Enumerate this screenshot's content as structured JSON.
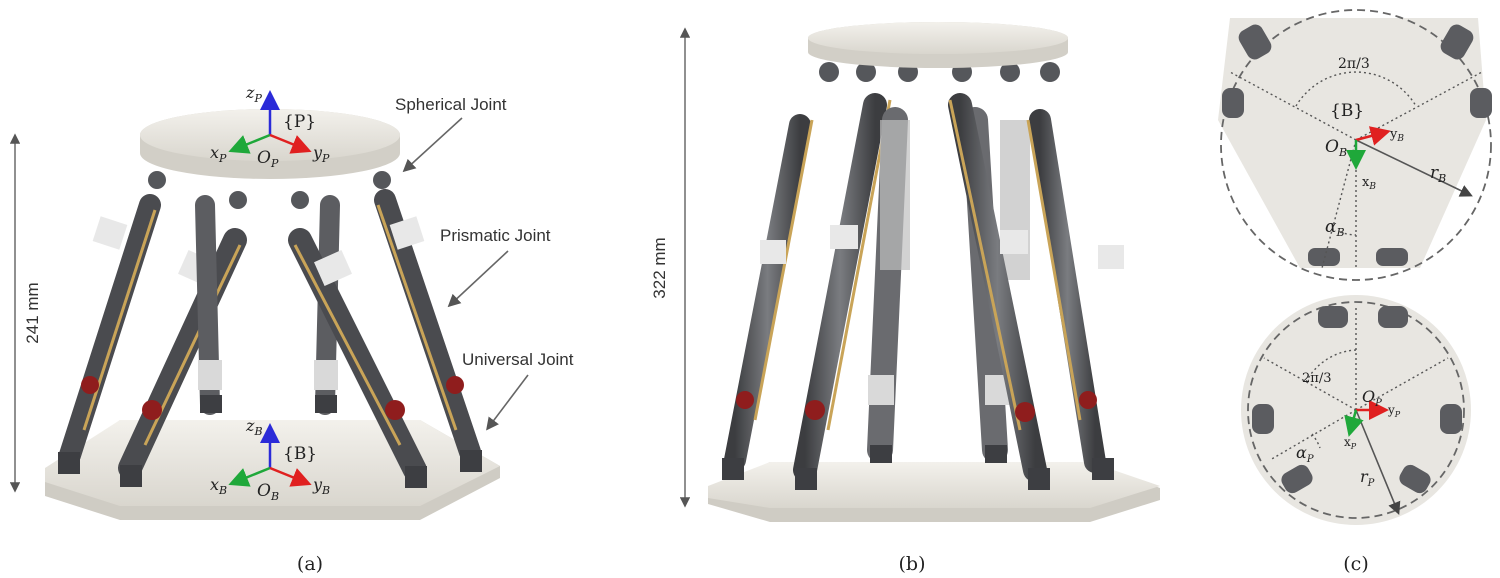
{
  "panel_a": {
    "caption": "(a)",
    "height_label": "241 mm",
    "platform_frame_label": "{P}",
    "base_frame_label": "{B}",
    "labels": {
      "spherical": "Spherical Joint",
      "prismatic": "Prismatic Joint",
      "universal": "Universal Joint"
    },
    "axes_top": {
      "z": "z",
      "x": "x",
      "y": "y",
      "o": "O",
      "sub": "P"
    },
    "axes_bottom": {
      "z": "z",
      "x": "x",
      "y": "y",
      "o": "O",
      "sub": "B"
    }
  },
  "panel_b": {
    "caption": "(b)",
    "height_label": "322 mm"
  },
  "panel_c": {
    "caption": "(c)",
    "base": {
      "frame_label": "{B}",
      "angle_label": "2π/3",
      "origin": "O",
      "origin_sub": "B",
      "x": "x",
      "x_sub": "B",
      "y": "y",
      "y_sub": "B",
      "r": "r",
      "r_sub": "B",
      "alpha": "α",
      "alpha_sub": "B"
    },
    "platform": {
      "angle_label": "2π/3",
      "origin": "O",
      "origin_sub": "P",
      "x": "x",
      "x_sub": "P",
      "y": "y",
      "y_sub": "P",
      "r": "r",
      "r_sub": "P",
      "alpha": "α",
      "alpha_sub": "P"
    }
  },
  "colors": {
    "axis_z": "#2b2bd8",
    "axis_x": "#1fa83a",
    "axis_y": "#e02020",
    "plate": "#ece9e2",
    "metal": "#55575b",
    "rod": "#c9a458",
    "red_ring": "#8f1d1d"
  }
}
